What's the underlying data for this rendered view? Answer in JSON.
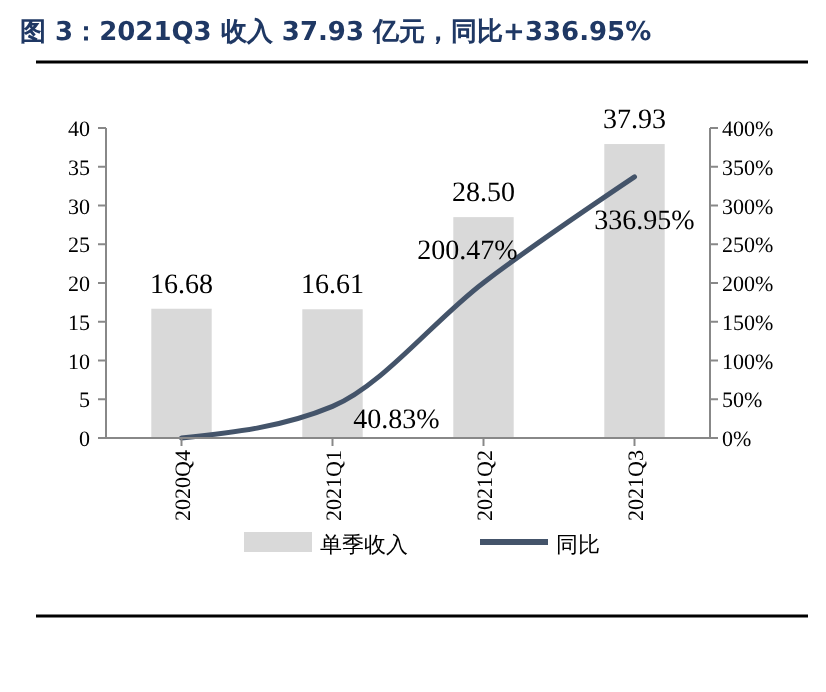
{
  "chart_data": {
    "type": "bar",
    "title": "图 3：2021Q3 收入 37.93 亿元，同比+336.95%",
    "categories": [
      "2020Q4",
      "2021Q1",
      "2021Q2",
      "2021Q3"
    ],
    "series": [
      {
        "name": "单季收入",
        "color": "#d9d9d9",
        "values": [
          16.68,
          16.61,
          28.5,
          37.93
        ],
        "value_labels": [
          "16.68",
          "16.61",
          "28.50",
          "37.93"
        ]
      },
      {
        "name": "同比",
        "type": "line",
        "axis": "y2",
        "color": "#44546a",
        "values": [
          0,
          40.83,
          200.47,
          336.95
        ],
        "value_labels": [
          null,
          "40.83%",
          "200.47%",
          "336.95%"
        ]
      }
    ],
    "ylim": [
      0,
      40
    ],
    "yticks": [
      0,
      5,
      10,
      15,
      20,
      25,
      30,
      35,
      40
    ],
    "y2lim": [
      0,
      400
    ],
    "y2ticks": [
      {
        "value": 0,
        "label": "0%"
      },
      {
        "value": 50,
        "label": "50%"
      },
      {
        "value": 100,
        "label": "100%"
      },
      {
        "value": 150,
        "label": "150%"
      },
      {
        "value": 200,
        "label": "200%"
      },
      {
        "value": 250,
        "label": "250%"
      },
      {
        "value": 300,
        "label": "300%"
      },
      {
        "value": 350,
        "label": "350%"
      },
      {
        "value": 400,
        "label": "400%"
      }
    ],
    "legend": "bottom",
    "grid": false,
    "marker": "none"
  }
}
